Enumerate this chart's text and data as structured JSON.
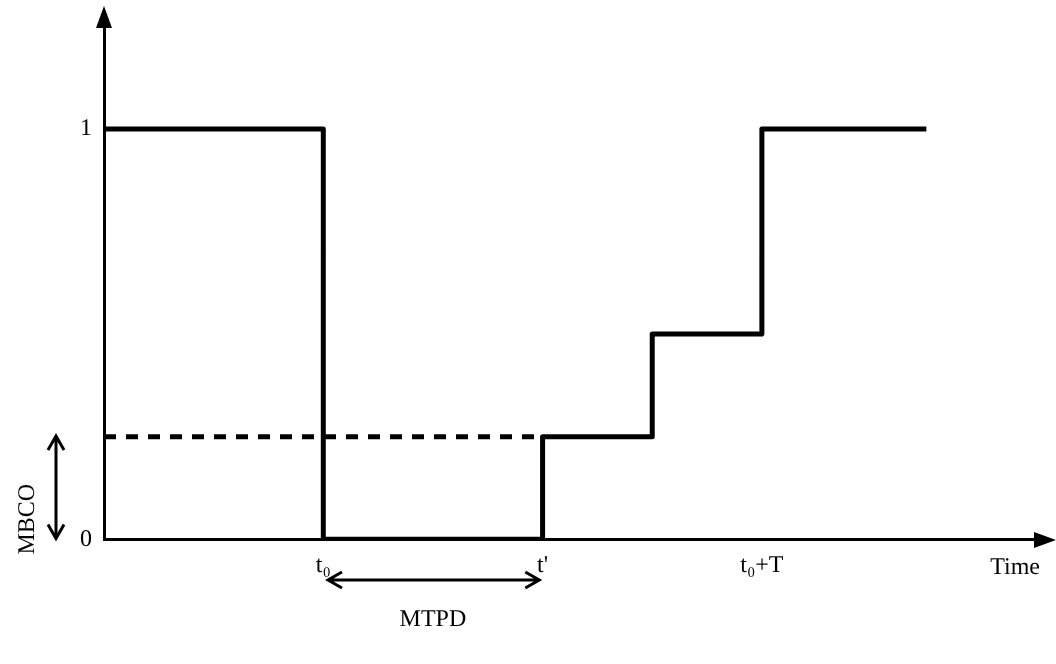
{
  "chart_data": {
    "type": "step",
    "xlabel": "Time",
    "categories": [
      null,
      null,
      null,
      null,
      "t₀",
      null,
      null,
      null,
      "t'",
      null,
      null,
      null,
      "t₀+T",
      null,
      null,
      null,
      null,
      null
    ],
    "series": [
      {
        "type": "step",
        "color": "#000000",
        "values": [
          1,
          1,
          1,
          1,
          0,
          0,
          0,
          0,
          0.25,
          0.25,
          0.5,
          0.5,
          1,
          1,
          1,
          1,
          null,
          null
        ]
      },
      {
        "type": "line",
        "color": "#000000",
        "line_style": "dashed",
        "values": [
          0.25,
          0.25,
          0.25,
          0.25,
          0.25,
          0.25,
          0.25,
          0.25,
          0.25,
          null,
          null,
          null,
          null,
          null,
          null,
          null,
          null,
          null
        ]
      }
    ],
    "ylim": [
      0,
      1.25
    ],
    "yticks": [
      0,
      1
    ],
    "grid": false,
    "legend": false,
    "marker": "none",
    "annotations": [
      "MBCO",
      "MTPD"
    ]
  }
}
